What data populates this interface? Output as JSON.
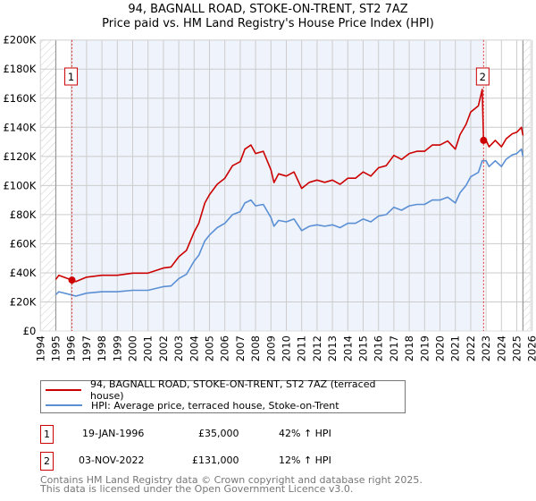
{
  "title_line1": "94, BAGNALL ROAD, STOKE-ON-TRENT, ST2 7AZ",
  "title_line2": "Price paid vs. HM Land Registry's House Price Index (HPI)",
  "colors": {
    "property": "#cc0000",
    "hpi": "#5b8fd4",
    "shade": "#eef3fc",
    "grid": "#cccccc"
  },
  "chart_data": {
    "type": "line",
    "title": "94, BAGNALL ROAD, STOKE-ON-TRENT, ST2 7AZ — Price paid vs. HM Land Registry's House Price Index (HPI)",
    "xlim": [
      1994,
      2026
    ],
    "ylim": [
      0,
      200000
    ],
    "x_ticks": [
      "1994",
      "1995",
      "1996",
      "1997",
      "1998",
      "1999",
      "2000",
      "2001",
      "2002",
      "2003",
      "2004",
      "2005",
      "2006",
      "2007",
      "2008",
      "2009",
      "2010",
      "2011",
      "2012",
      "2013",
      "2014",
      "2015",
      "2016",
      "2017",
      "2018",
      "2019",
      "2020",
      "2021",
      "2022",
      "2023",
      "2024",
      "2025",
      "2026"
    ],
    "y_ticks": [
      {
        "v": 0,
        "label": "£0"
      },
      {
        "v": 20000,
        "label": "£20K"
      },
      {
        "v": 40000,
        "label": "£40K"
      },
      {
        "v": 60000,
        "label": "£60K"
      },
      {
        "v": 80000,
        "label": "£80K"
      },
      {
        "v": 100000,
        "label": "£100K"
      },
      {
        "v": 120000,
        "label": "£120K"
      },
      {
        "v": 140000,
        "label": "£140K"
      },
      {
        "v": 160000,
        "label": "£160K"
      },
      {
        "v": 180000,
        "label": "£180K"
      },
      {
        "v": 200000,
        "label": "£200K"
      }
    ],
    "grid": true,
    "hatched_ranges": [
      [
        1994,
        1995
      ],
      [
        2025.4,
        2026
      ]
    ],
    "shaded_range": [
      1996.05,
      2022.84
    ],
    "series": [
      {
        "name": "94, BAGNALL ROAD, STOKE-ON-TRENT, ST2 7AZ (terraced house)",
        "key": "property",
        "x": [
          1995.0,
          1995.2,
          1996.05,
          1996.3,
          1997,
          1998,
          1999,
          2000,
          2001,
          2002,
          2002.5,
          2003,
          2003.5,
          2004,
          2004.3,
          2004.7,
          2005,
          2005.5,
          2006,
          2006.5,
          2007,
          2007.3,
          2007.7,
          2008,
          2008.5,
          2009,
          2009.2,
          2009.5,
          2010,
          2010.5,
          2011,
          2011.5,
          2012,
          2012.5,
          2013,
          2013.5,
          2014,
          2014.5,
          2015,
          2015.5,
          2016,
          2016.5,
          2017,
          2017.5,
          2018,
          2018.5,
          2019,
          2019.5,
          2020,
          2020.5,
          2021,
          2021.3,
          2021.7,
          2022,
          2022.5,
          2022.75,
          2022.84,
          2023,
          2023.2,
          2023.6,
          2024,
          2024.3,
          2024.7,
          2025,
          2025.3,
          2025.4
        ],
        "y": [
          35500,
          38300,
          35000,
          34000,
          37000,
          38300,
          38300,
          39800,
          39800,
          43300,
          44000,
          51000,
          55400,
          68000,
          74000,
          88000,
          93700,
          100800,
          105000,
          113600,
          116400,
          125000,
          127800,
          122000,
          123500,
          110800,
          102000,
          108000,
          106500,
          109300,
          98000,
          102200,
          103700,
          102200,
          103700,
          100800,
          105000,
          105000,
          109300,
          106500,
          112200,
          113600,
          120700,
          117900,
          122000,
          123500,
          123500,
          127800,
          127800,
          130600,
          125000,
          134900,
          142000,
          150500,
          154800,
          166000,
          131000,
          131000,
          126600,
          131000,
          126600,
          132000,
          135500,
          136600,
          140000,
          134400
        ]
      },
      {
        "name": "HPI: Average price, terraced house, Stoke-on-Trent",
        "key": "hpi",
        "x": [
          1995.0,
          1995.2,
          1996.05,
          1996.3,
          1997,
          1998,
          1999,
          2000,
          2001,
          2002,
          2002.5,
          2003,
          2003.5,
          2004,
          2004.3,
          2004.7,
          2005,
          2005.5,
          2006,
          2006.5,
          2007,
          2007.3,
          2007.7,
          2008,
          2008.5,
          2009,
          2009.2,
          2009.5,
          2010,
          2010.5,
          2011,
          2011.5,
          2012,
          2012.5,
          2013,
          2013.5,
          2014,
          2014.5,
          2015,
          2015.5,
          2016,
          2016.5,
          2017,
          2017.5,
          2018,
          2018.5,
          2019,
          2019.5,
          2020,
          2020.5,
          2021,
          2021.3,
          2021.7,
          2022,
          2022.5,
          2022.75,
          2022.84,
          2023,
          2023.2,
          2023.6,
          2024,
          2024.3,
          2024.7,
          2025,
          2025.3,
          2025.4
        ],
        "y": [
          25000,
          27000,
          24700,
          24000,
          26000,
          27000,
          27000,
          28000,
          28000,
          30500,
          31000,
          36000,
          39000,
          48000,
          52000,
          62000,
          66000,
          71000,
          74000,
          80000,
          82000,
          88000,
          90000,
          86000,
          87000,
          78000,
          72000,
          76000,
          75000,
          77000,
          69000,
          72000,
          73000,
          72000,
          73000,
          71000,
          74000,
          74000,
          77000,
          75000,
          79000,
          80000,
          85000,
          83000,
          86000,
          87000,
          87000,
          90000,
          90000,
          92000,
          88000,
          95000,
          100000,
          106000,
          109000,
          117000,
          117000,
          117000,
          113000,
          117000,
          113000,
          118000,
          121000,
          122000,
          125000,
          120000
        ]
      }
    ],
    "sales": [
      {
        "label": "1",
        "x": 1996.05,
        "y": 35000
      },
      {
        "label": "2",
        "x": 2022.84,
        "y": 131000
      }
    ],
    "legend": "below"
  },
  "legend": {
    "property": "94, BAGNALL ROAD, STOKE-ON-TRENT, ST2 7AZ (terraced house)",
    "hpi": "HPI: Average price, terraced house, Stoke-on-Trent"
  },
  "sales_table": [
    {
      "num": "1",
      "date": "19-JAN-1996",
      "price": "£35,000",
      "hpi": "42% ↑ HPI"
    },
    {
      "num": "2",
      "date": "03-NOV-2022",
      "price": "£131,000",
      "hpi": "12% ↑ HPI"
    }
  ],
  "footer": {
    "line1": "Contains HM Land Registry data © Crown copyright and database right 2025.",
    "line2": "This data is licensed under the Open Government Licence v3.0."
  }
}
